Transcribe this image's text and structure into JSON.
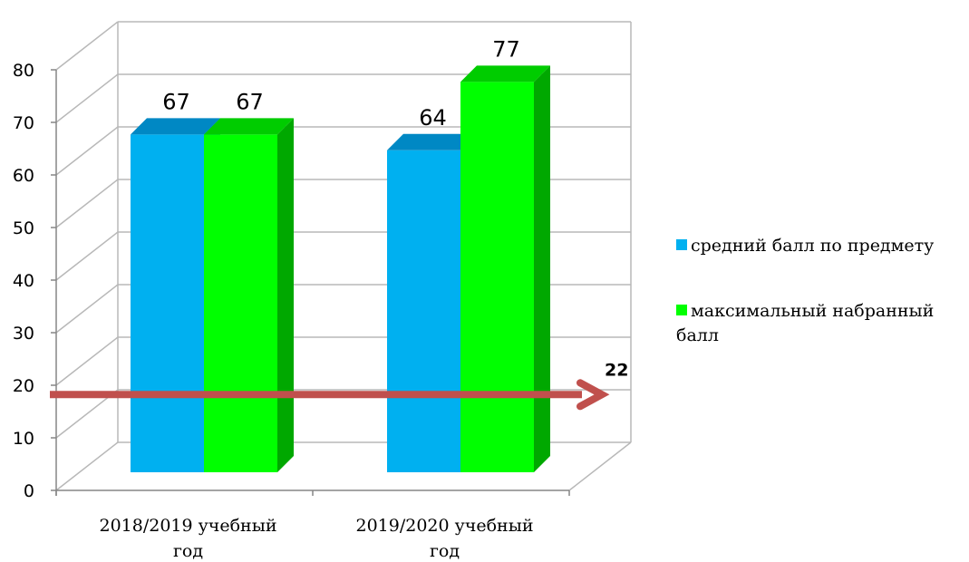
{
  "chart_data": {
    "type": "bar",
    "categories": [
      "2018/2019 учебный год",
      "2019/2020 учебный год"
    ],
    "category_lines": [
      [
        "2018/2019 учебный",
        "год"
      ],
      [
        "2019/2020 учебный",
        "год"
      ]
    ],
    "series": [
      {
        "name": "средний балл по предмету",
        "values": [
          67,
          64
        ],
        "color": "#00b0f0",
        "top_color": "#0088c4"
      },
      {
        "name": "максимальный набранный балл",
        "values": [
          67,
          77
        ],
        "color": "#00ff00",
        "side_color": "#00a800",
        "top_color": "#00cc00"
      }
    ],
    "legend_lines": [
      [
        "средний балл по предмету"
      ],
      [
        "максимальный набранный",
        "балл"
      ]
    ],
    "ylim": [
      0,
      80
    ],
    "yticks": [
      0,
      10,
      20,
      30,
      40,
      50,
      60,
      70,
      80
    ],
    "grid": true,
    "legend_position": "right",
    "threshold": {
      "value": 16.5,
      "label": "22",
      "color": "#c0504d"
    },
    "style": "3d-column"
  }
}
